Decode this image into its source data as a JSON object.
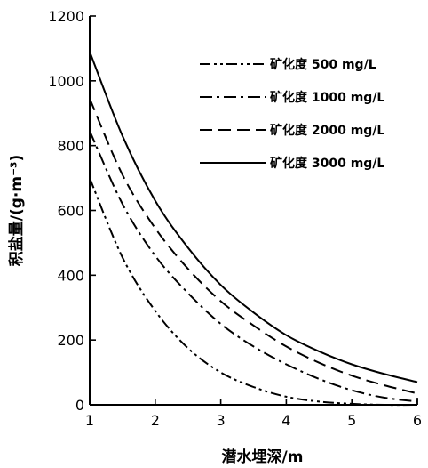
{
  "chart_data": {
    "type": "line",
    "title": "",
    "xlabel": "潜水埋深/m",
    "ylabel": "积盐量/(g·m⁻³)",
    "xlim": [
      1,
      6
    ],
    "ylim": [
      0,
      1200
    ],
    "xticks": [
      1,
      2,
      3,
      4,
      5,
      6
    ],
    "yticks": [
      0,
      200,
      400,
      600,
      800,
      1000,
      1200
    ],
    "x_tick_labels": [
      "1",
      "2",
      "3",
      "4",
      "5",
      "6"
    ],
    "y_tick_labels": [
      "0",
      "200",
      "400",
      "600",
      "800",
      "1000",
      "1200"
    ],
    "legend_position": "top-right",
    "x": [
      1,
      1.5,
      2,
      2.5,
      3,
      3.5,
      4,
      4.5,
      5,
      5.5,
      6
    ],
    "series": [
      {
        "name": "矿化度 500 mg/L",
        "dash": "dashdotdot",
        "values": [
          700,
          455,
          290,
          175,
          100,
          55,
          25,
          10,
          3,
          0,
          0
        ]
      },
      {
        "name": "矿化度 1000 mg/L",
        "dash": "dashdot",
        "values": [
          845,
          620,
          460,
          345,
          250,
          180,
          125,
          80,
          45,
          22,
          10
        ]
      },
      {
        "name": "矿化度 2000 mg/L",
        "dash": "dash",
        "values": [
          945,
          710,
          545,
          420,
          320,
          245,
          180,
          130,
          90,
          60,
          35
        ]
      },
      {
        "name": "矿化度 3000 mg/L",
        "dash": "solid",
        "values": [
          1090,
          830,
          630,
          485,
          370,
          285,
          215,
          165,
          125,
          95,
          70
        ]
      }
    ]
  }
}
